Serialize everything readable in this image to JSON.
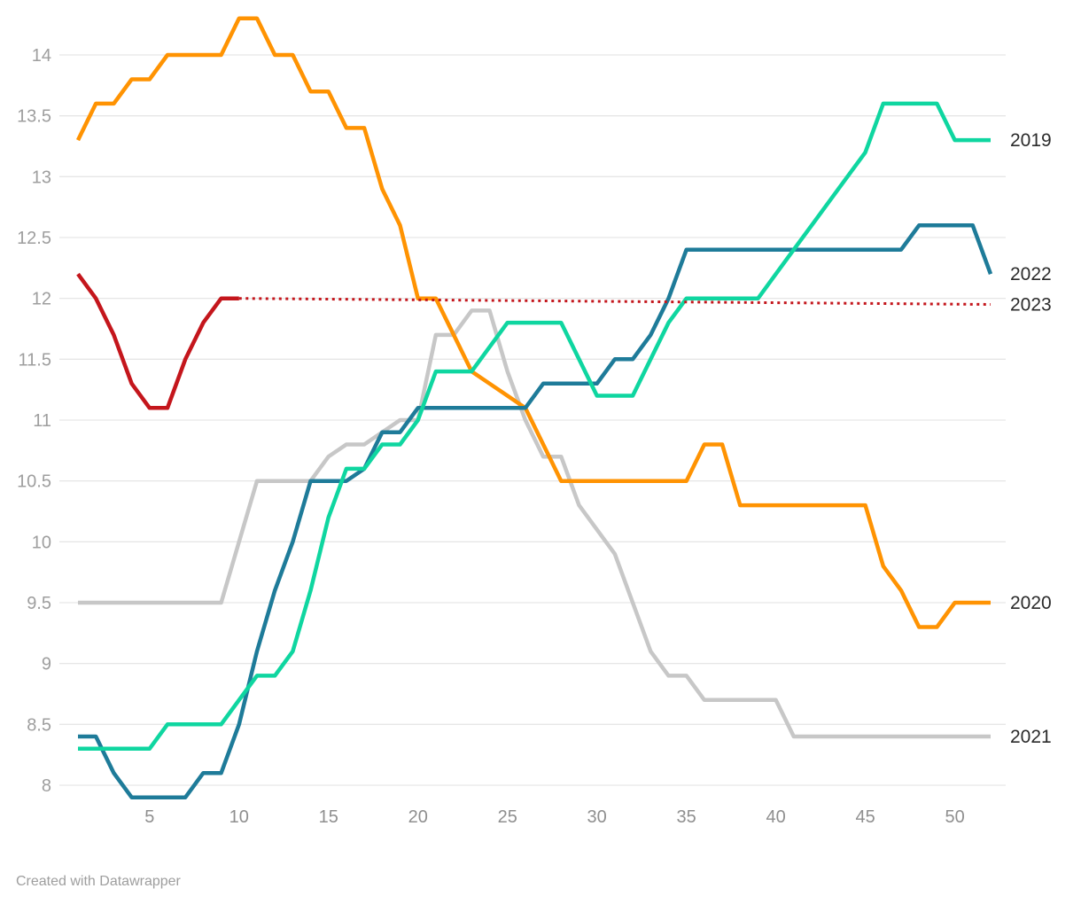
{
  "footer": {
    "credit": "Created with Datawrapper"
  },
  "chart_data": {
    "type": "line",
    "title": "",
    "xlabel": "",
    "ylabel": "",
    "x_unit": "week",
    "x_range": [
      1,
      52
    ],
    "y_range": [
      7.9,
      14.3
    ],
    "grid": true,
    "legend_position": "right-end-labels",
    "x_tick_labels": [
      5,
      10,
      15,
      20,
      25,
      30,
      35,
      40,
      45,
      50
    ],
    "y_tick_labels": [
      8,
      8.5,
      9,
      9.5,
      10,
      10.5,
      11,
      11.5,
      12,
      12.5,
      13,
      13.5,
      14
    ],
    "axis_text_color": "#9e9e9e",
    "grid_color": "#e6e6e6",
    "label_text_color": "#2b2b2b",
    "series": [
      {
        "name": "2021",
        "color": "#c7c7c7",
        "style": "solid",
        "show_label": true,
        "values": [
          9.5,
          9.5,
          9.5,
          9.5,
          9.5,
          9.5,
          9.5,
          9.5,
          9.5,
          10.0,
          10.5,
          10.5,
          10.5,
          10.5,
          10.7,
          10.8,
          10.8,
          10.9,
          11.0,
          11.0,
          11.7,
          11.7,
          11.9,
          11.9,
          11.4,
          11.0,
          10.7,
          10.7,
          10.3,
          10.1,
          9.9,
          9.5,
          9.1,
          8.9,
          8.9,
          8.7,
          8.7,
          8.7,
          8.7,
          8.7,
          8.4,
          8.4,
          8.4,
          8.4,
          8.4,
          8.4,
          8.4,
          8.4,
          8.4,
          8.4,
          8.4,
          8.4
        ]
      },
      {
        "name": "2020",
        "color": "#ff9302",
        "style": "solid",
        "show_label": true,
        "values": [
          13.3,
          13.6,
          13.6,
          13.8,
          13.8,
          14.0,
          14.0,
          14.0,
          14.0,
          14.3,
          14.3,
          14.0,
          14.0,
          13.7,
          13.7,
          13.4,
          13.4,
          12.9,
          12.6,
          12.0,
          12.0,
          11.7,
          11.4,
          11.3,
          11.2,
          11.1,
          10.8,
          10.5,
          10.5,
          10.5,
          10.5,
          10.5,
          10.5,
          10.5,
          10.5,
          10.8,
          10.8,
          10.3,
          10.3,
          10.3,
          10.3,
          10.3,
          10.3,
          10.3,
          10.3,
          9.8,
          9.6,
          9.3,
          9.3,
          9.5,
          9.5,
          9.5
        ]
      },
      {
        "name": "2022",
        "color": "#1e7b99",
        "style": "solid",
        "show_label": true,
        "values": [
          8.4,
          8.4,
          8.1,
          7.9,
          7.9,
          7.9,
          7.9,
          8.1,
          8.1,
          8.5,
          9.1,
          9.6,
          10.0,
          10.5,
          10.5,
          10.5,
          10.6,
          10.9,
          10.9,
          11.1,
          11.1,
          11.1,
          11.1,
          11.1,
          11.1,
          11.1,
          11.3,
          11.3,
          11.3,
          11.3,
          11.5,
          11.5,
          11.7,
          12.0,
          12.4,
          12.4,
          12.4,
          12.4,
          12.4,
          12.4,
          12.4,
          12.4,
          12.4,
          12.4,
          12.4,
          12.4,
          12.4,
          12.6,
          12.6,
          12.6,
          12.6,
          12.2
        ]
      },
      {
        "name": "2019",
        "color": "#0fd6a0",
        "style": "solid",
        "show_label": true,
        "values": [
          8.3,
          8.3,
          8.3,
          8.3,
          8.3,
          8.5,
          8.5,
          8.5,
          8.5,
          8.7,
          8.9,
          8.9,
          9.1,
          9.6,
          10.2,
          10.6,
          10.6,
          10.8,
          10.8,
          11.0,
          11.4,
          11.4,
          11.4,
          11.6,
          11.8,
          11.8,
          11.8,
          11.8,
          11.5,
          11.2,
          11.2,
          11.2,
          11.5,
          11.8,
          12.0,
          12.0,
          12.0,
          12.0,
          12.0,
          12.2,
          12.4,
          12.6,
          12.8,
          13.0,
          13.2,
          13.6,
          13.6,
          13.6,
          13.6,
          13.3,
          13.3,
          13.3
        ]
      },
      {
        "name": "2023",
        "color": "#c4161c",
        "style": "solid",
        "show_label": false,
        "start_week": 1,
        "values": [
          12.2,
          12.0,
          11.7,
          11.3,
          11.1,
          11.1,
          11.5,
          11.8,
          12.0,
          12.0
        ]
      },
      {
        "name": "2023",
        "color": "#c4161c",
        "style": "dotted",
        "show_label": true,
        "points": [
          [
            10,
            12.0
          ],
          [
            52,
            11.95
          ]
        ]
      }
    ]
  }
}
